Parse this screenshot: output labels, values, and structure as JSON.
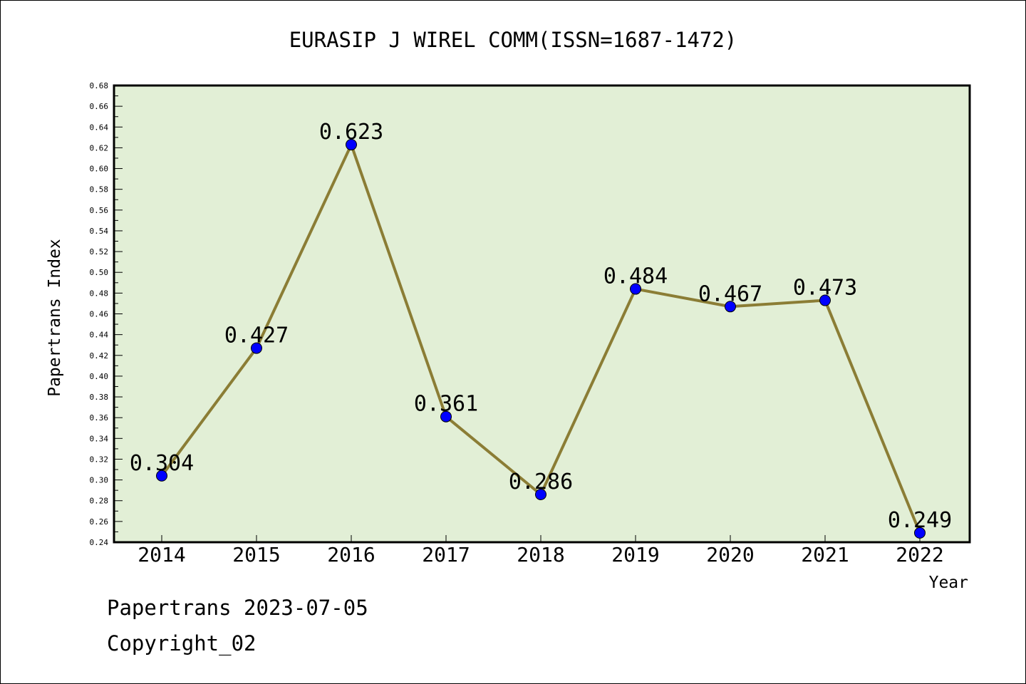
{
  "chart_data": {
    "type": "line",
    "title": "EURASIP J WIREL COMM(ISSN=1687-1472)",
    "xlabel": "Year",
    "ylabel": "Papertrans Index",
    "categories": [
      "2014",
      "2015",
      "2016",
      "2017",
      "2018",
      "2019",
      "2020",
      "2021",
      "2022"
    ],
    "series": [
      {
        "values": [
          0.304,
          0.427,
          0.623,
          0.361,
          0.286,
          0.484,
          0.467,
          0.473,
          0.249
        ],
        "labels": [
          "0.304",
          "0.427",
          "0.623",
          "0.361",
          "0.286",
          "0.484",
          "0.467",
          "0.473",
          "0.249"
        ]
      }
    ],
    "ylim": [
      0.24,
      0.68
    ],
    "yticks": [
      "0.24",
      "0.26",
      "0.28",
      "0.30",
      "0.32",
      "0.34",
      "0.36",
      "0.38",
      "0.40",
      "0.42",
      "0.44",
      "0.46",
      "0.48",
      "0.50",
      "0.52",
      "0.54",
      "0.56",
      "0.58",
      "0.60",
      "0.62",
      "0.64",
      "0.66",
      "0.68"
    ],
    "grid": false,
    "legend": "none",
    "colors": {
      "plot_background": "#e2efd6",
      "line": "#8b7d35",
      "marker": "#0000ff"
    }
  },
  "footer": {
    "line1": "Papertrans 2023-07-05",
    "line2": "Copyright_02"
  }
}
